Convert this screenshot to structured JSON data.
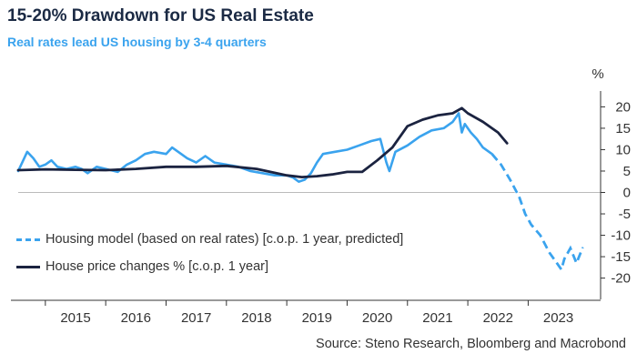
{
  "header": {
    "title": "15-20% Drawdown for US Real Estate",
    "subtitle": "Real rates lead US housing by 3-4 quarters"
  },
  "footer": {
    "source": "Source: Steno Research, Bloomberg and Macrobond"
  },
  "colors": {
    "housing_model": "#3aa3ee",
    "house_price": "#1b2340",
    "axis": "#333333",
    "zero_line": "#bbbbbb"
  },
  "chart_data": {
    "type": "line",
    "title": "15-20% Drawdown for US Real Estate",
    "subtitle": "Real rates lead US housing by 3-4 quarters",
    "y_unit": "%",
    "ylim": [
      -22,
      22
    ],
    "yticks": [
      20,
      15,
      10,
      5,
      0,
      -5,
      -10,
      -15,
      -20
    ],
    "xlim": [
      2014.55,
      2024.2
    ],
    "xticks": [
      "2015",
      "2016",
      "2017",
      "2018",
      "2019",
      "2020",
      "2021",
      "2022",
      "2023"
    ],
    "grid": false,
    "legend_position": "left",
    "series": [
      {
        "name": "Housing model (based on real rates) [c.o.p. 1 year, predicted]",
        "style": "dashed",
        "x": [
          2014.55,
          2014.7,
          2014.8,
          2014.9,
          2015.0,
          2015.1,
          2015.2,
          2015.35,
          2015.5,
          2015.6,
          2015.7,
          2015.85,
          2016.0,
          2016.2,
          2016.35,
          2016.5,
          2016.65,
          2016.8,
          2017.0,
          2017.1,
          2017.25,
          2017.35,
          2017.5,
          2017.65,
          2017.8,
          2018.0,
          2018.2,
          2018.4,
          2018.6,
          2018.8,
          2019.0,
          2019.1,
          2019.2,
          2019.3,
          2019.4,
          2019.5,
          2019.6,
          2019.8,
          2020.0,
          2020.2,
          2020.4,
          2020.55,
          2020.65,
          2020.7,
          2020.8,
          2021.0,
          2021.2,
          2021.4,
          2021.6,
          2021.75,
          2021.85,
          2021.9,
          2021.95,
          2022.05,
          2022.15,
          2022.25,
          2022.4,
          2022.55,
          2022.7,
          2022.85,
          2022.95,
          2023.05,
          2023.2,
          2023.35,
          2023.45,
          2023.55,
          2023.6,
          2023.7,
          2023.8,
          2023.9
        ],
        "y": [
          5.0,
          9.5,
          8.0,
          6.0,
          6.5,
          7.5,
          6.0,
          5.5,
          6.0,
          5.5,
          4.5,
          6.0,
          5.5,
          4.8,
          6.5,
          7.5,
          9.0,
          9.5,
          9.0,
          10.5,
          9.0,
          8.0,
          7.0,
          8.5,
          7.0,
          6.5,
          6.0,
          5.0,
          4.5,
          4.0,
          4.0,
          3.5,
          2.5,
          3.0,
          4.5,
          7.0,
          9.0,
          9.5,
          10.0,
          11.0,
          12.0,
          12.5,
          7.0,
          5.0,
          9.5,
          11.0,
          13.0,
          14.5,
          15.0,
          16.5,
          18.5,
          14.0,
          16.0,
          14.0,
          12.5,
          10.5,
          9.0,
          6.5,
          3.0,
          -1.0,
          -5.0,
          -7.5,
          -10.0,
          -14.0,
          -16.0,
          -18.0,
          -15.5,
          -13.0,
          -16.5,
          -13.0
        ]
      },
      {
        "name": "House price changes % [c.o.p. 1 year]",
        "style": "solid",
        "x": [
          2014.55,
          2015.0,
          2015.5,
          2016.0,
          2016.5,
          2017.0,
          2017.5,
          2018.0,
          2018.5,
          2019.0,
          2019.25,
          2019.5,
          2019.75,
          2020.0,
          2020.25,
          2020.5,
          2020.75,
          2021.0,
          2021.25,
          2021.5,
          2021.75,
          2021.9,
          2022.0,
          2022.25,
          2022.5,
          2022.65
        ],
        "y": [
          5.2,
          5.4,
          5.3,
          5.2,
          5.5,
          6.0,
          6.0,
          6.2,
          5.5,
          4.0,
          3.6,
          3.8,
          4.2,
          4.8,
          4.8,
          7.5,
          10.5,
          15.5,
          17.0,
          18.0,
          18.5,
          19.7,
          18.5,
          16.5,
          14.0,
          11.5
        ]
      }
    ]
  }
}
